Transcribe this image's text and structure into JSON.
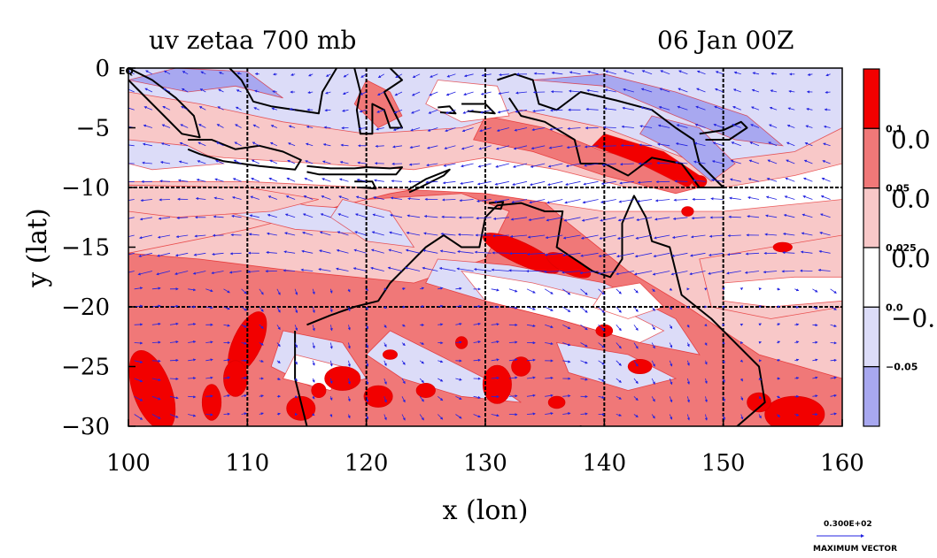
{
  "title_left": "uv zetaa 700 mb",
  "title_right": "06 Jan 00Z",
  "colors": {
    "strong_red": "#f20000",
    "mid_red": "#f07878",
    "light_red": "#f8c8c8",
    "white": "#ffffff",
    "light_blue": "#dcdcf8",
    "mid_blue": "#a8a8f0",
    "vector": "#2323e0",
    "coast": "#000000",
    "contour": "#e00000"
  },
  "chart_data": {
    "type": "heatmap",
    "title": "uv zetaa 700 mb",
    "subtitle": "06 Jan 00Z",
    "xlabel": "x (lon)",
    "ylabel": "y (lat)",
    "xlim": [
      100,
      160
    ],
    "ylim": [
      -30,
      0
    ],
    "x_ticks": [
      "100",
      "110",
      "120",
      "130",
      "140",
      "150",
      "160"
    ],
    "y_ticks": [
      "0",
      "−5",
      "−10",
      "−15",
      "−20",
      "−25",
      "−30"
    ],
    "y_tick_extra": "EQ",
    "grid": true,
    "colorbar": {
      "levels": [
        -0.05,
        0.0,
        0.025,
        0.05,
        0.1
      ],
      "level_labels": [
        "−0.05",
        "0.0",
        "0.025",
        "0.05",
        "0.1"
      ],
      "band_colors": [
        "#a8a8f0",
        "#dcdcf8",
        "#ffffff",
        "#f8c8c8",
        "#f07878",
        "#f20000"
      ],
      "big_labels": [
        "0.0",
        "0.0",
        "0.0",
        "−0."
      ]
    },
    "vector_field": {
      "u": "uv",
      "spacing_deg": 1.5,
      "reference_vector_label": "0.300E+02",
      "reference_vector_caption": "MAXIMUM VECTOR"
    }
  }
}
